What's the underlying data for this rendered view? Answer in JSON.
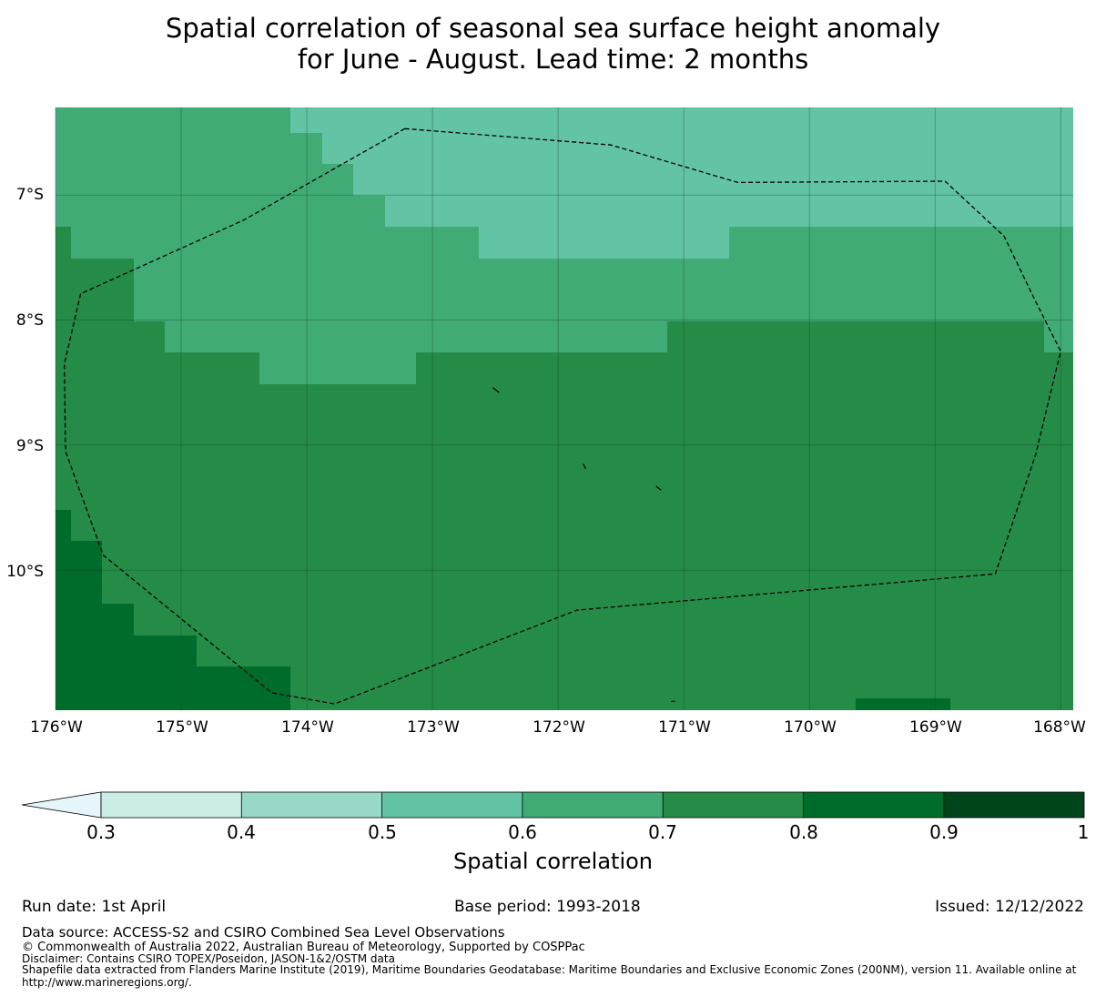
{
  "title": {
    "line1": "Spatial correlation of seasonal sea surface height anomaly",
    "line2": "for June - August. Lead time: 2 months"
  },
  "map": {
    "lon_range": [
      -176,
      -167.9
    ],
    "lat_range": [
      -11.12,
      -6.3
    ],
    "lat_ticks": [
      "7°S",
      "8°S",
      "9°S",
      "10°S"
    ],
    "lon_ticks": [
      "176°W",
      "175°W",
      "174°W",
      "173°W",
      "172°W",
      "171°W",
      "170°W",
      "169°W",
      "168°W"
    ],
    "classes": {
      "c56": "#63c3a5",
      "c67": "#41ab76",
      "c78": "#258c47",
      "c89": "#006c2c"
    },
    "eez_boundary_lonlat": [
      [
        -173.22,
        -6.47
      ],
      [
        -171.58,
        -6.6
      ],
      [
        -170.57,
        -6.9
      ],
      [
        -168.92,
        -6.89
      ],
      [
        -168.45,
        -7.33
      ],
      [
        -168.2,
        -7.85
      ],
      [
        -168.0,
        -8.25
      ],
      [
        -168.2,
        -9.08
      ],
      [
        -168.52,
        -10.03
      ],
      [
        -171.85,
        -10.32
      ],
      [
        -173.78,
        -11.07
      ],
      [
        -174.28,
        -10.98
      ],
      [
        -175.62,
        -9.88
      ],
      [
        -175.92,
        -9.05
      ],
      [
        -175.93,
        -8.35
      ],
      [
        -175.8,
        -7.79
      ],
      [
        -174.5,
        -7.2
      ],
      [
        -173.22,
        -6.47
      ]
    ],
    "islands_lonlat": [
      [
        [
          -172.52,
          -8.54
        ],
        [
          -172.47,
          -8.58
        ]
      ],
      [
        [
          -171.8,
          -9.15
        ],
        [
          -171.78,
          -9.19
        ]
      ],
      [
        [
          -171.22,
          -9.33
        ],
        [
          -171.18,
          -9.36
        ]
      ],
      [
        [
          -171.1,
          -11.05
        ],
        [
          -171.07,
          -11.05
        ]
      ]
    ]
  },
  "colorbar": {
    "title": "Spatial correlation",
    "tick_labels": [
      "0.3",
      "0.4",
      "0.5",
      "0.6",
      "0.7",
      "0.8",
      "0.9",
      "1"
    ],
    "extend_color": "#e5f5f9",
    "colors": [
      "#ccece6",
      "#99d8c9",
      "#63c3a5",
      "#41ab76",
      "#258c47",
      "#006c2c",
      "#00441b"
    ]
  },
  "footer": {
    "run_date": "Run date: 1st April",
    "base_period": "Base period: 1993-2018",
    "issued": "Issued: 12/12/2022",
    "data_source": "Data source: ACCESS-S2 and CSIRO Combined Sea Level Observations",
    "copyright": "© Commonwealth of Australia 2022, Australian Bureau of Meteorology, Supported by COSPPac",
    "disclaimer": "Disclaimer: Contains CSIRO TOPEX/Poseidon, JASON-1&2/OSTM data",
    "shapefile_line1": "Shapefile data extracted from Flanders Marine Institute (2019), Maritime Boundaries Geodatabase: Maritime Boundaries and Exclusive Economic Zones (200NM), version 11. Available online at",
    "shapefile_line2": "http://www.marineregions.org/."
  }
}
